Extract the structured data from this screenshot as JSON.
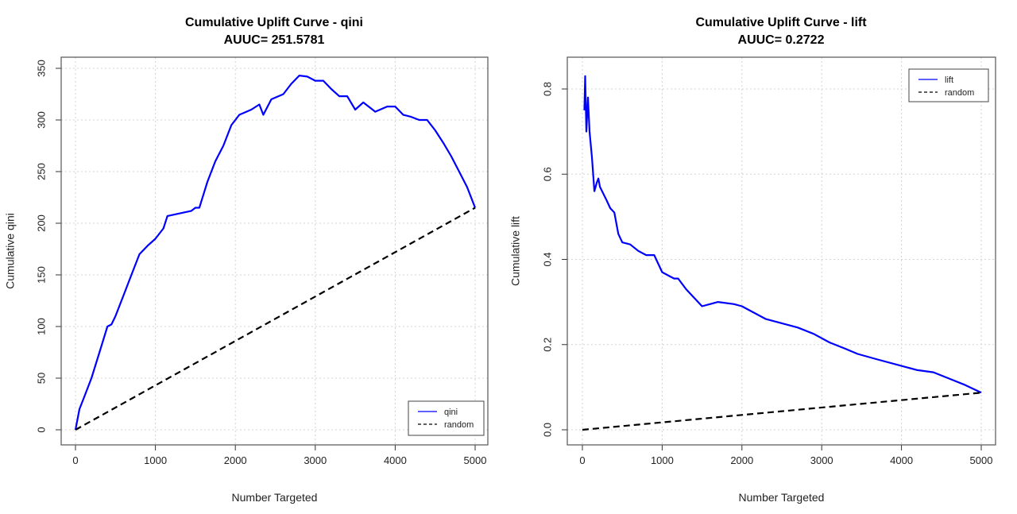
{
  "chart_data": [
    {
      "type": "line",
      "title": "Cumulative Uplift Curve -  qini",
      "subtitle": "AUUC= 251.5781",
      "xlabel": "Number Targeted",
      "ylabel": "Cumulative qini",
      "xlim": [
        0,
        5000
      ],
      "ylim": [
        0,
        350
      ],
      "xticks": [
        0,
        1000,
        2000,
        3000,
        4000,
        5000
      ],
      "yticks": [
        0,
        50,
        100,
        150,
        200,
        250,
        300,
        350
      ],
      "grid": true,
      "legend_position": "bottom-right",
      "series": [
        {
          "name": "qini",
          "color": "#0000ff",
          "style": "solid",
          "x": [
            0,
            50,
            100,
            200,
            300,
            400,
            450,
            500,
            600,
            700,
            800,
            900,
            1000,
            1100,
            1150,
            1450,
            1500,
            1550,
            1650,
            1750,
            1850,
            1950,
            2050,
            2200,
            2300,
            2350,
            2450,
            2600,
            2700,
            2800,
            2900,
            3000,
            3100,
            3200,
            3300,
            3400,
            3500,
            3600,
            3750,
            3900,
            4000,
            4100,
            4200,
            4300,
            4400,
            4500,
            4600,
            4700,
            4800,
            4900,
            5000
          ],
          "y": [
            0,
            20,
            30,
            50,
            75,
            100,
            102,
            110,
            130,
            150,
            170,
            178,
            185,
            195,
            207,
            212,
            215,
            215,
            240,
            260,
            275,
            295,
            305,
            310,
            315,
            305,
            320,
            325,
            335,
            343,
            342,
            338,
            338,
            330,
            323,
            323,
            310,
            317,
            308,
            313,
            313,
            305,
            303,
            300,
            300,
            290,
            278,
            265,
            250,
            235,
            215
          ]
        },
        {
          "name": "random",
          "color": "#000000",
          "style": "dashed",
          "x": [
            0,
            5000
          ],
          "y": [
            0,
            215
          ]
        }
      ]
    },
    {
      "type": "line",
      "title": "Cumulative Uplift Curve -  lift",
      "subtitle": "AUUC= 0.2722",
      "xlabel": "Number Targeted",
      "ylabel": "Cumulative lift",
      "xlim": [
        0,
        5000
      ],
      "ylim": [
        0,
        0.8
      ],
      "xticks": [
        0,
        1000,
        2000,
        3000,
        4000,
        5000
      ],
      "yticks": [
        "0.0",
        "0.2",
        "0.4",
        "0.6",
        "0.8"
      ],
      "grid": true,
      "legend_position": "top-right",
      "series": [
        {
          "name": "lift",
          "color": "#0000ff",
          "style": "solid",
          "x": [
            25,
            35,
            50,
            70,
            90,
            120,
            150,
            180,
            200,
            220,
            300,
            350,
            400,
            450,
            500,
            600,
            700,
            800,
            900,
            1000,
            1100,
            1150,
            1200,
            1300,
            1500,
            1600,
            1700,
            1900,
            2000,
            2100,
            2300,
            2500,
            2700,
            2900,
            3100,
            3300,
            3450,
            3700,
            4000,
            4200,
            4400,
            4600,
            4800,
            5000
          ],
          "y": [
            0.75,
            0.83,
            0.7,
            0.78,
            0.7,
            0.64,
            0.56,
            0.58,
            0.59,
            0.57,
            0.54,
            0.52,
            0.51,
            0.46,
            0.44,
            0.435,
            0.42,
            0.41,
            0.41,
            0.37,
            0.36,
            0.355,
            0.355,
            0.33,
            0.29,
            0.295,
            0.3,
            0.295,
            0.29,
            0.28,
            0.26,
            0.25,
            0.24,
            0.225,
            0.205,
            0.19,
            0.178,
            0.165,
            0.15,
            0.14,
            0.135,
            0.12,
            0.105,
            0.087
          ]
        },
        {
          "name": "random",
          "color": "#000000",
          "style": "dashed",
          "x": [
            0,
            5000
          ],
          "y": [
            0,
            0.087
          ]
        }
      ]
    }
  ]
}
